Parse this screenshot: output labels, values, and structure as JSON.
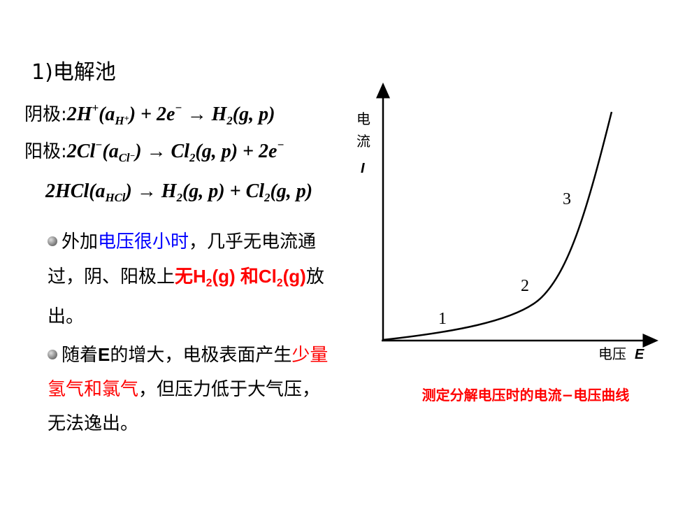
{
  "title": "1)电解池",
  "equations": [
    {
      "label": "阴极:",
      "runs": [
        {
          "text": "2H"
        },
        {
          "text": "+",
          "pos": "sup"
        },
        {
          "text": "(a"
        },
        {
          "text": "H",
          "pos": "sub"
        },
        {
          "text": "+",
          "pos": "subsup"
        },
        {
          "text": ") + 2e"
        },
        {
          "text": "−",
          "pos": "sup"
        },
        {
          "text": " → H"
        },
        {
          "text": "2",
          "pos": "sub"
        },
        {
          "text": "(g, p)"
        }
      ]
    },
    {
      "label": "阳极:",
      "runs": [
        {
          "text": "2Cl"
        },
        {
          "text": "−",
          "pos": "sup"
        },
        {
          "text": "(a"
        },
        {
          "text": "Cl",
          "pos": "sub"
        },
        {
          "text": "−",
          "pos": "subsup"
        },
        {
          "text": ") → Cl"
        },
        {
          "text": "2",
          "pos": "sub"
        },
        {
          "text": "(g, p) + 2e"
        },
        {
          "text": "−",
          "pos": "sup"
        }
      ]
    },
    {
      "runs": [
        {
          "text": "2HCl(a"
        },
        {
          "text": "HCl",
          "pos": "sub"
        },
        {
          "text": ") → H"
        },
        {
          "text": "2",
          "pos": "sub"
        },
        {
          "text": "(g, p) + Cl"
        },
        {
          "text": "2",
          "pos": "sub"
        },
        {
          "text": "(g, p)"
        }
      ]
    }
  ],
  "bullets": [
    {
      "runs": [
        {
          "text": "外加"
        },
        {
          "text": "电压很小时",
          "color": "blue"
        },
        {
          "text": "，几乎无电流通过，阴、阳极上"
        },
        {
          "text": "无H",
          "color": "red",
          "bold": true
        },
        {
          "text": "2",
          "color": "red",
          "bold": true,
          "pos": "sub"
        },
        {
          "text": "(g) 和Cl",
          "color": "red",
          "bold": true
        },
        {
          "text": "2",
          "color": "red",
          "bold": true,
          "pos": "sub"
        },
        {
          "text": "(g)",
          "color": "red",
          "bold": true
        },
        {
          "text": "放出。"
        }
      ]
    },
    {
      "runs": [
        {
          "text": "随着"
        },
        {
          "text": "E",
          "bold": true
        },
        {
          "text": "的增大，电极表面产生"
        },
        {
          "text": "少量氢气和氯气",
          "color": "red"
        },
        {
          "text": "，但压力低于大气压，无法逸出。"
        }
      ]
    }
  ],
  "figure": {
    "y_label": [
      "电",
      "流"
    ],
    "y_symbol": "I",
    "x_label": "电压",
    "x_symbol": "E",
    "curve_labels": [
      "1",
      "2",
      "3"
    ],
    "caption": "测定分解电压时的电流−电压曲线"
  }
}
